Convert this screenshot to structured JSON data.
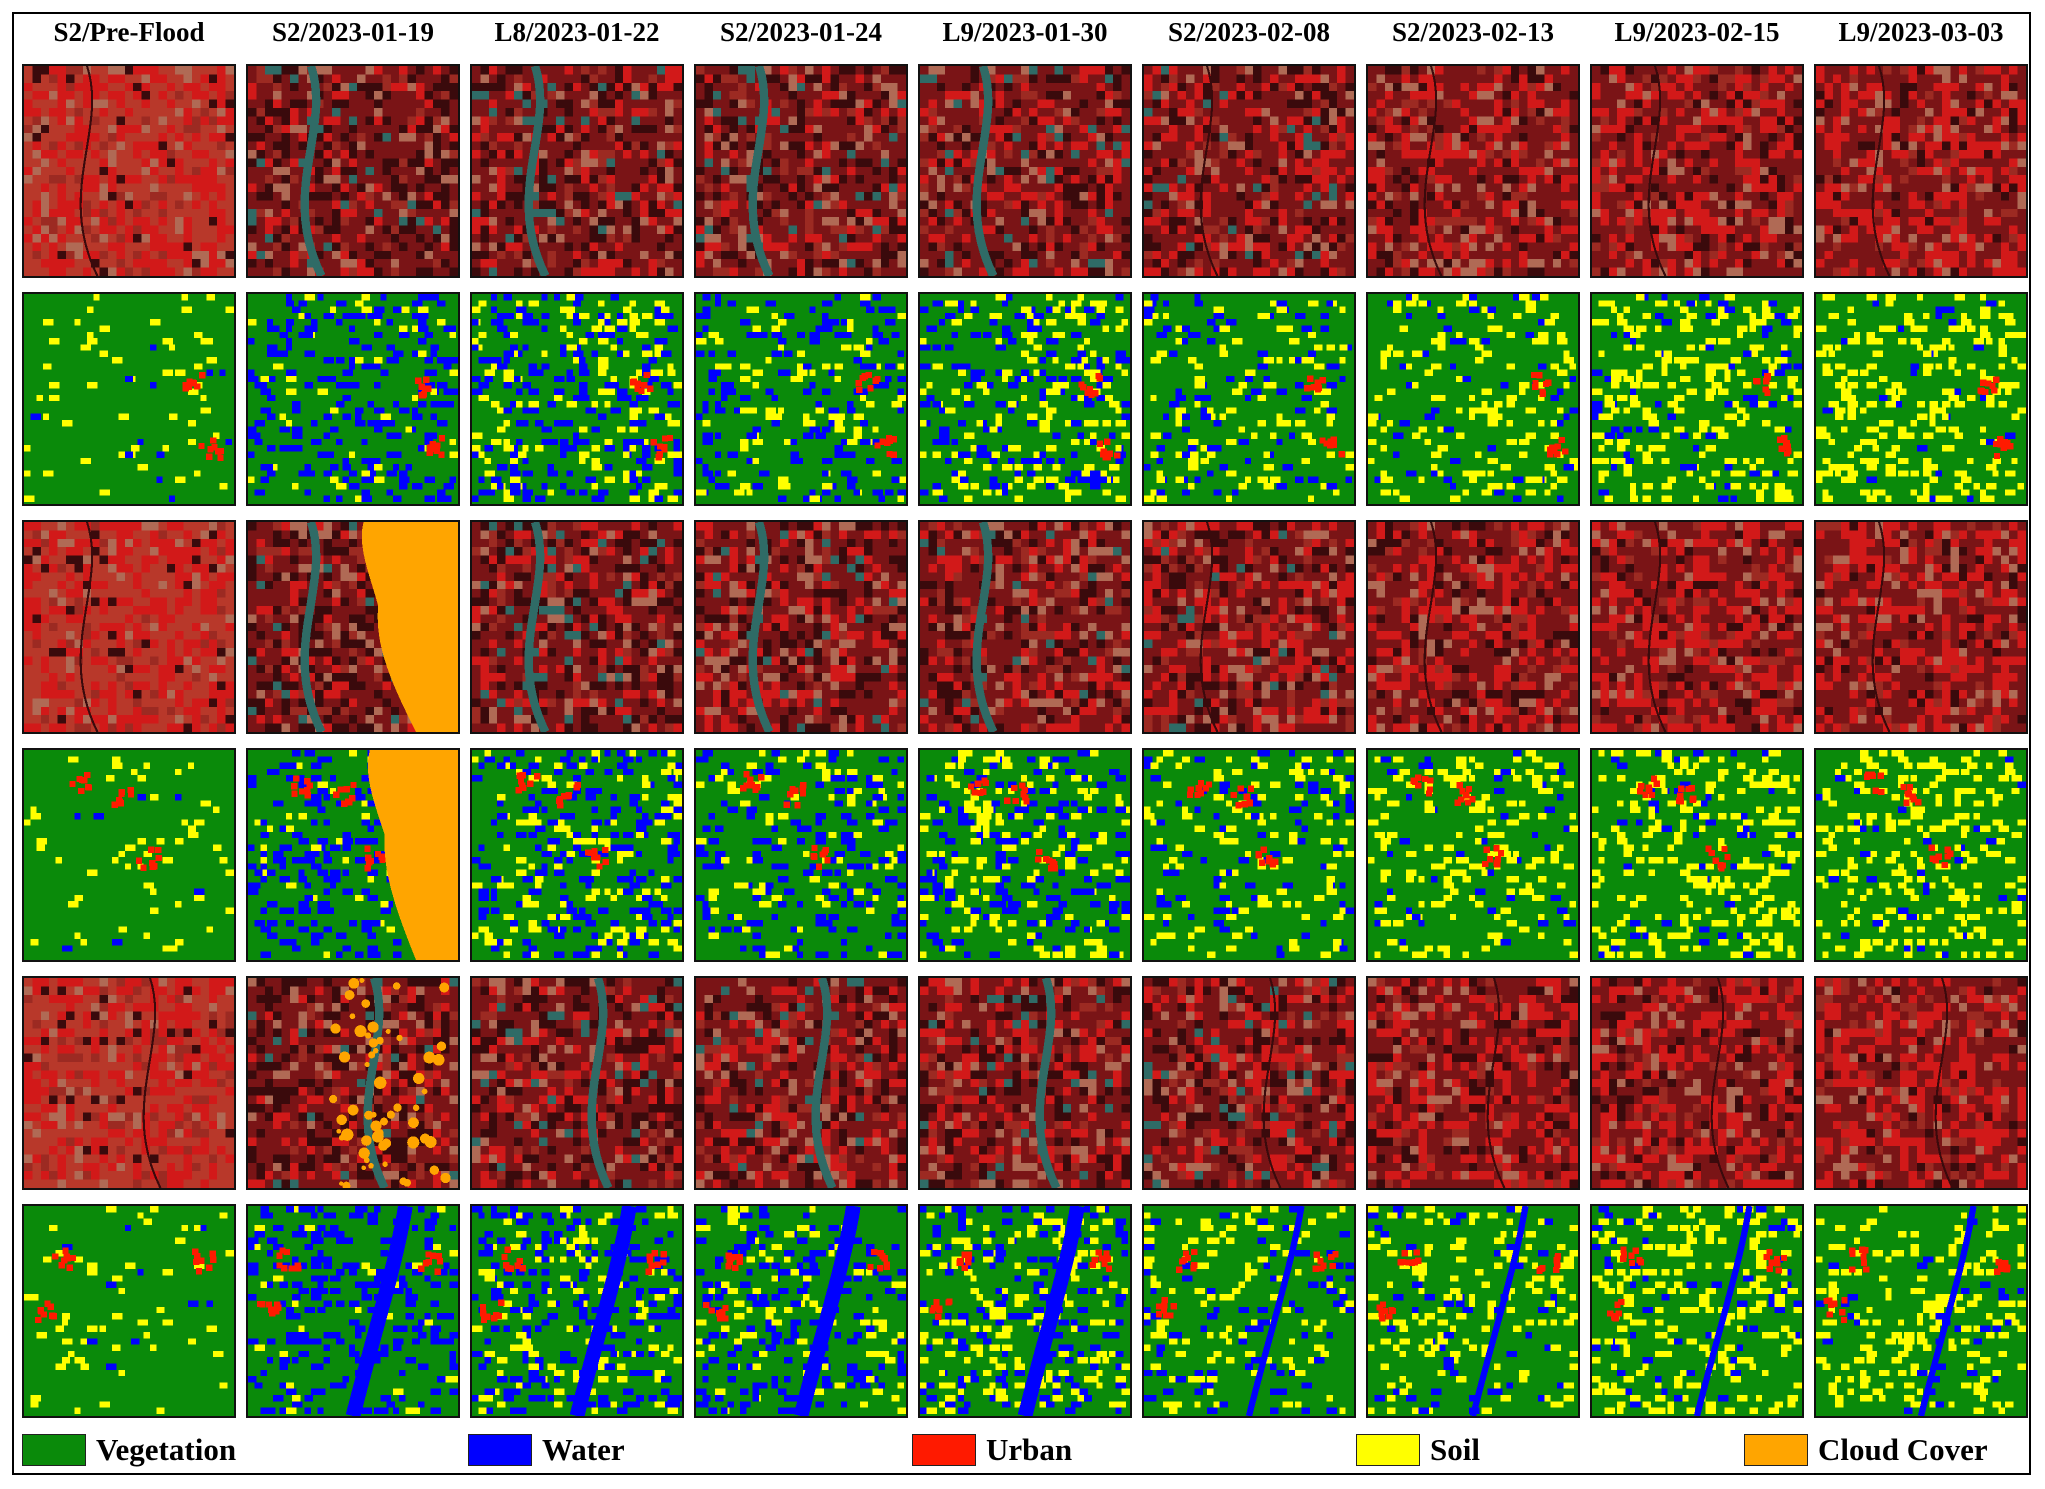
{
  "columns": [
    "S2/Pre-Flood",
    "S2/2023-01-19",
    "L8/2023-01-22",
    "S2/2023-01-24",
    "L9/2023-01-30",
    "S2/2023-02-08",
    "S2/2023-02-13",
    "L9/2023-02-15",
    "L9/2023-03-03"
  ],
  "rows": [
    {
      "kind": "imagery",
      "label": ""
    },
    {
      "kind": "classification",
      "label": ""
    },
    {
      "kind": "imagery",
      "label": ""
    },
    {
      "kind": "classification",
      "label": ""
    },
    {
      "kind": "imagery",
      "label": ""
    },
    {
      "kind": "classification",
      "label": ""
    }
  ],
  "legend": [
    {
      "label": "Vegetation",
      "color": "#0a8a0a"
    },
    {
      "label": "Water",
      "color": "#0000ff"
    },
    {
      "label": "Urban",
      "color": "#ff1a00"
    },
    {
      "label": "Soil",
      "color": "#ffff00"
    },
    {
      "label": "Cloud Cover",
      "color": "#ffa500"
    }
  ],
  "colors": {
    "vegetation": "#0a8a0a",
    "water": "#0000ff",
    "urban": "#ff1a00",
    "soil": "#ffff00",
    "cloud": "#ffa500",
    "false_color_bright": "#d21919",
    "false_color_dark": "#3a0a0c",
    "flood_water_teal": "#2f6b66"
  },
  "icons": {
    "swatch": "legend-swatch-square"
  }
}
